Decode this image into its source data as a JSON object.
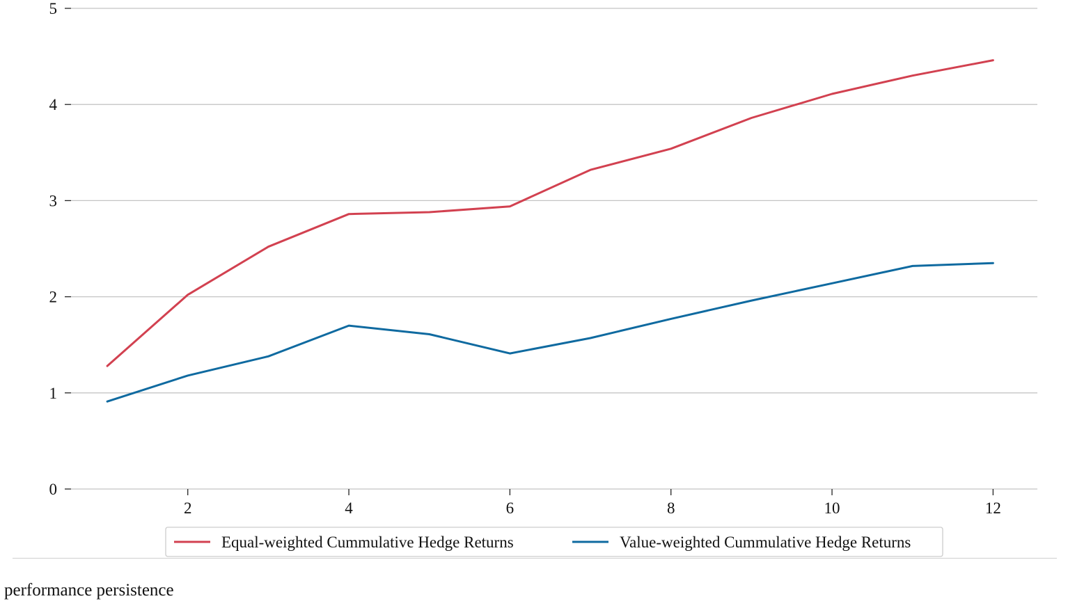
{
  "chart_data": {
    "type": "line",
    "x": [
      1,
      2,
      3,
      4,
      5,
      6,
      7,
      8,
      9,
      10,
      11,
      12
    ],
    "series": [
      {
        "name": "Equal-weighted Cummulative Hedge Returns",
        "color": "#d24150",
        "values": [
          1.28,
          2.02,
          2.52,
          2.86,
          2.88,
          2.94,
          3.32,
          3.54,
          3.86,
          4.11,
          4.3,
          4.46
        ]
      },
      {
        "name": "Value-weighted Cummulative Hedge Returns",
        "color": "#0f6aa0",
        "values": [
          0.91,
          1.18,
          1.38,
          1.7,
          1.61,
          1.41,
          1.57,
          1.77,
          1.96,
          2.14,
          2.32,
          2.35
        ]
      }
    ],
    "xticks": [
      2,
      4,
      6,
      8,
      10,
      12
    ],
    "yticks": [
      0,
      1,
      2,
      3,
      4,
      5
    ],
    "xlim": [
      0.55,
      12.55
    ],
    "ylim": [
      0,
      5
    ],
    "title": "",
    "xlabel": "",
    "ylabel": "",
    "grid": "horizontal",
    "legend_position": "bottom-center"
  },
  "caption": "performance persistence"
}
